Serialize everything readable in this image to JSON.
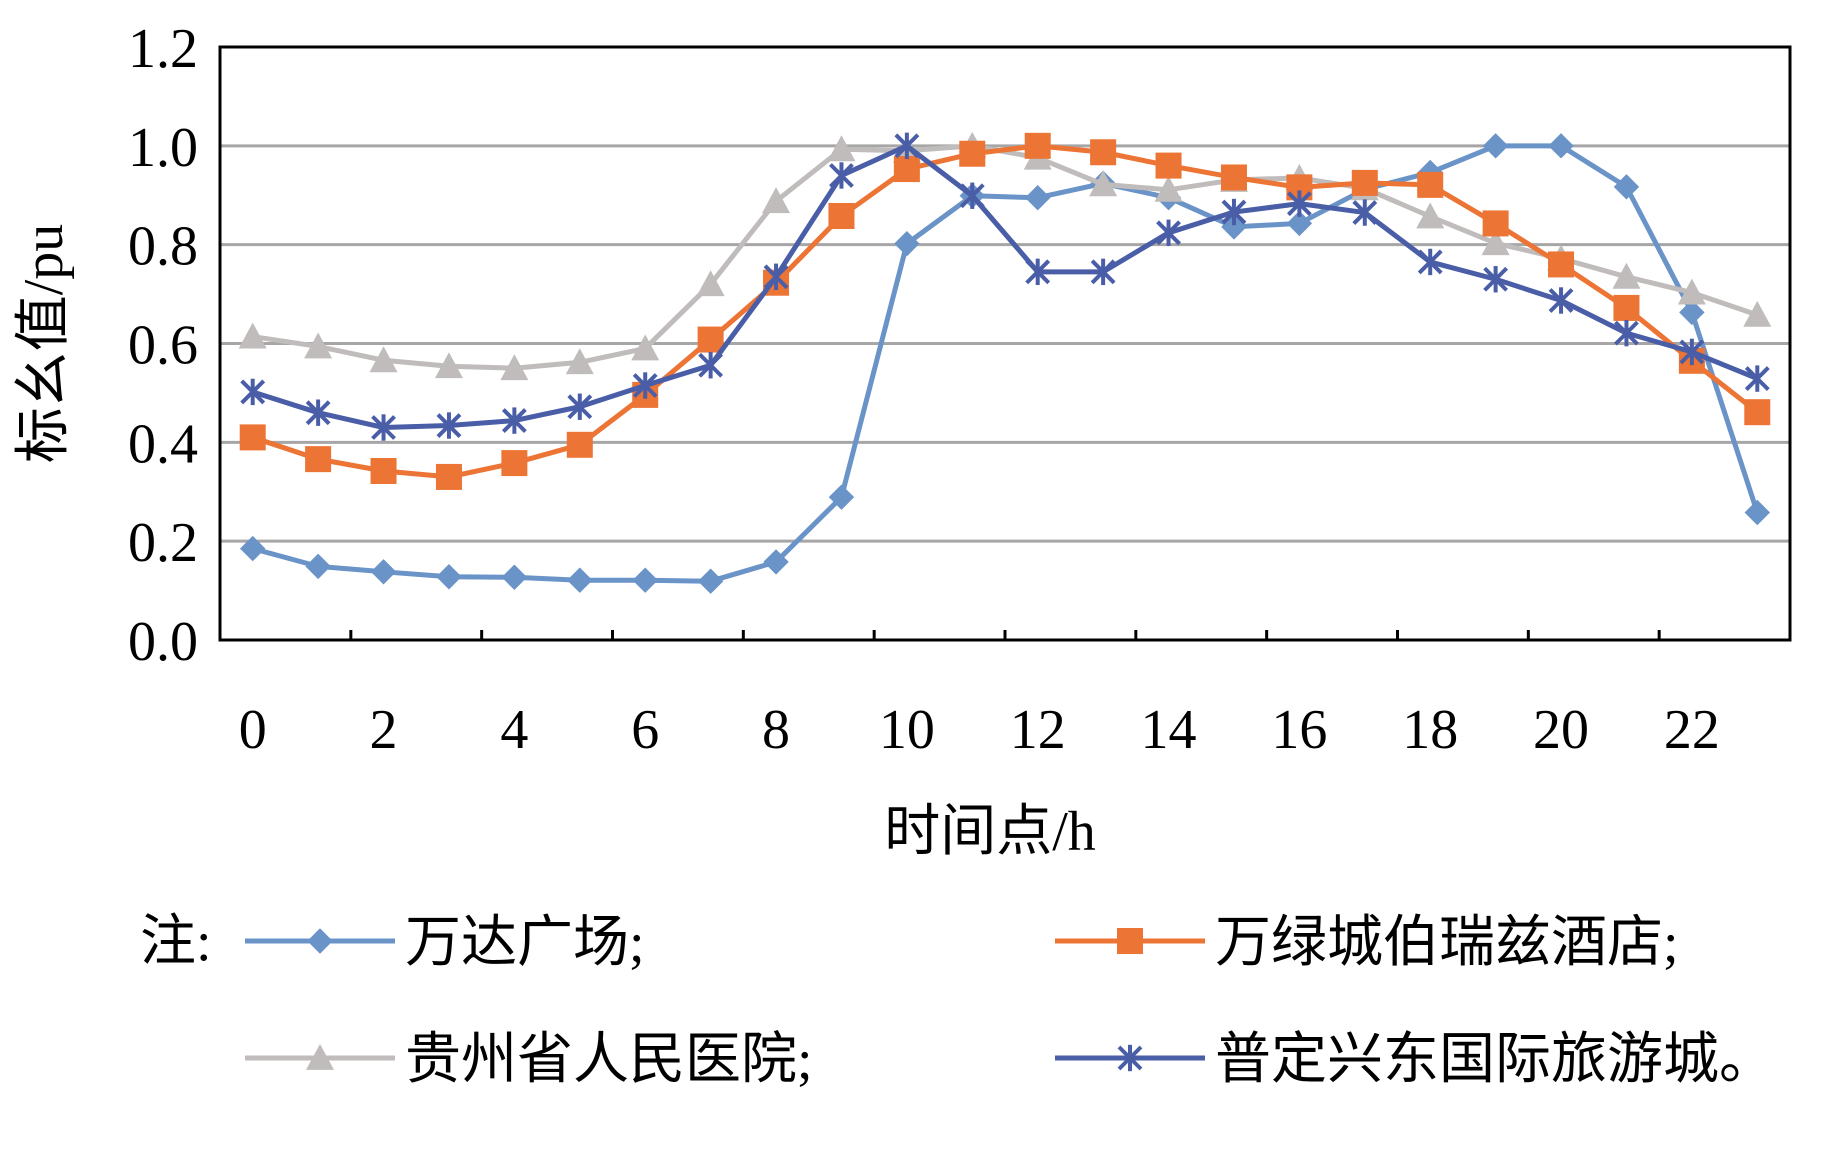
{
  "chart_data": {
    "type": "line",
    "xlabel": "时间点/h",
    "ylabel": "标幺值/pu",
    "x": [
      0,
      1,
      2,
      3,
      4,
      5,
      6,
      7,
      8,
      9,
      10,
      11,
      12,
      13,
      14,
      15,
      16,
      17,
      18,
      19,
      20,
      21,
      22,
      23
    ],
    "xticks": [
      0,
      2,
      4,
      6,
      8,
      10,
      12,
      14,
      16,
      18,
      20,
      22
    ],
    "xlim": [
      -0.5,
      23.5
    ],
    "yticks": [
      "0.0",
      "0.2",
      "0.4",
      "0.6",
      "0.8",
      "1.0",
      "1.2"
    ],
    "ylim": [
      0,
      1.2
    ],
    "grid": true,
    "legend_prefix": "注:",
    "legend_placement": "bottom",
    "series": [
      {
        "name": "万达广场;",
        "color": "#6a93c8",
        "marker": "diamond",
        "values": [
          0.185,
          0.149,
          0.138,
          0.128,
          0.127,
          0.121,
          0.121,
          0.119,
          0.158,
          0.289,
          0.802,
          0.899,
          0.895,
          0.924,
          0.895,
          0.836,
          0.843,
          0.912,
          0.946,
          1.0,
          1.0,
          0.917,
          0.663,
          0.258
        ]
      },
      {
        "name": "万绿城伯瑞兹酒店;",
        "color": "#ec7434",
        "marker": "square",
        "values": [
          0.41,
          0.366,
          0.342,
          0.33,
          0.358,
          0.395,
          0.496,
          0.608,
          0.723,
          0.858,
          0.953,
          0.984,
          1.0,
          0.987,
          0.96,
          0.936,
          0.916,
          0.925,
          0.921,
          0.843,
          0.76,
          0.672,
          0.565,
          0.461
        ]
      },
      {
        "name": "贵州省人民医院;",
        "color": "#bfbcbb",
        "marker": "triangle",
        "values": [
          0.614,
          0.594,
          0.566,
          0.554,
          0.55,
          0.562,
          0.59,
          0.72,
          0.888,
          0.993,
          0.99,
          1.0,
          0.976,
          0.922,
          0.911,
          0.931,
          0.935,
          0.914,
          0.857,
          0.803,
          0.772,
          0.735,
          0.703,
          0.658
        ]
      },
      {
        "name": "普定兴东国际旅游城。",
        "color": "#4a5ea8",
        "marker": "asterisk",
        "values": [
          0.502,
          0.46,
          0.43,
          0.434,
          0.444,
          0.472,
          0.515,
          0.556,
          0.735,
          0.94,
          1.0,
          0.899,
          0.745,
          0.745,
          0.824,
          0.866,
          0.883,
          0.865,
          0.765,
          0.73,
          0.687,
          0.621,
          0.583,
          0.529
        ]
      }
    ]
  }
}
